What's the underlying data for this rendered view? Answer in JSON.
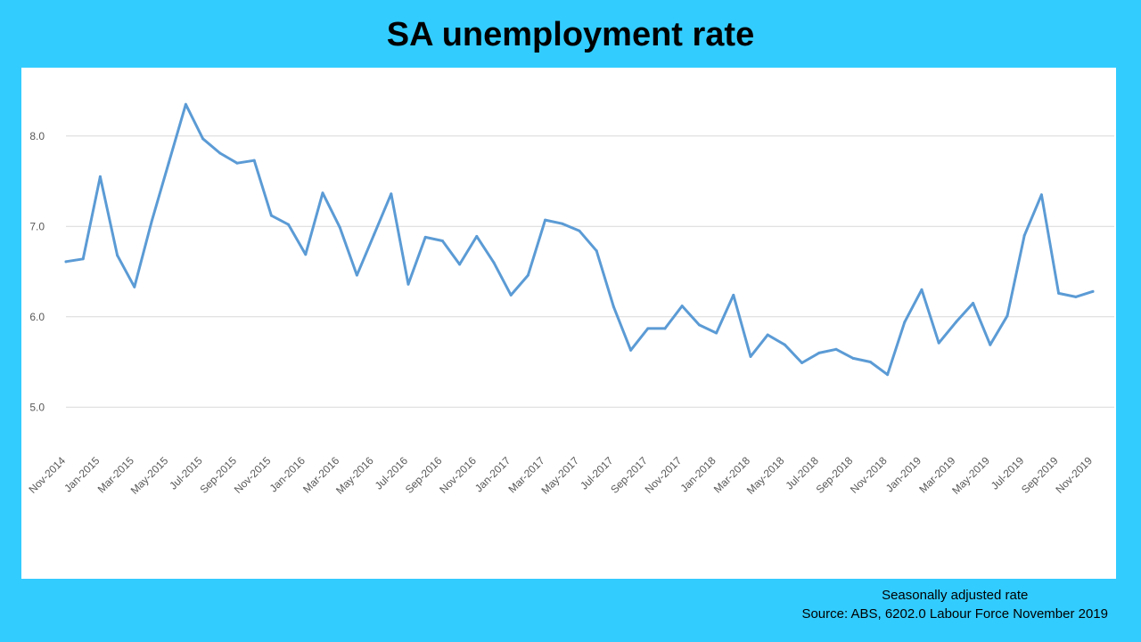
{
  "title": "SA unemployment rate",
  "footer": {
    "line1": "Seasonally adjusted rate",
    "line2": "Source: ABS, 6202.0 Labour Force November 2019"
  },
  "colors": {
    "background": "#33ccff",
    "panel": "#ffffff",
    "line": "#5b9bd5",
    "grid": "#d9d9d9",
    "tick_text": "#595959"
  },
  "chart_data": {
    "type": "line",
    "title": "SA unemployment rate",
    "xlabel": "",
    "ylabel": "",
    "ylim": [
      4.5,
      8.5
    ],
    "yticks": [
      "5.0",
      "6.0",
      "7.0",
      "8.0"
    ],
    "grid": true,
    "legend": "none",
    "x": [
      "Nov-2014",
      "Dec-2014",
      "Jan-2015",
      "Feb-2015",
      "Mar-2015",
      "Apr-2015",
      "May-2015",
      "Jun-2015",
      "Jul-2015",
      "Aug-2015",
      "Sep-2015",
      "Oct-2015",
      "Nov-2015",
      "Dec-2015",
      "Jan-2016",
      "Feb-2016",
      "Mar-2016",
      "Apr-2016",
      "May-2016",
      "Jun-2016",
      "Jul-2016",
      "Aug-2016",
      "Sep-2016",
      "Oct-2016",
      "Nov-2016",
      "Dec-2016",
      "Jan-2017",
      "Feb-2017",
      "Mar-2017",
      "Apr-2017",
      "May-2017",
      "Jun-2017",
      "Jul-2017",
      "Aug-2017",
      "Sep-2017",
      "Oct-2017",
      "Nov-2017",
      "Dec-2017",
      "Jan-2018",
      "Feb-2018",
      "Mar-2018",
      "Apr-2018",
      "May-2018",
      "Jun-2018",
      "Jul-2018",
      "Aug-2018",
      "Sep-2018",
      "Oct-2018",
      "Nov-2018",
      "Dec-2018",
      "Jan-2019",
      "Feb-2019",
      "Mar-2019",
      "Apr-2019",
      "May-2019",
      "Jun-2019",
      "Jul-2019",
      "Aug-2019",
      "Sep-2019",
      "Oct-2019",
      "Nov-2019"
    ],
    "xtick_labels": [
      "Nov-2014",
      "Jan-2015",
      "Mar-2015",
      "May-2015",
      "Jul-2015",
      "Sep-2015",
      "Nov-2015",
      "Jan-2016",
      "Mar-2016",
      "May-2016",
      "Jul-2016",
      "Sep-2016",
      "Nov-2016",
      "Jan-2017",
      "Mar-2017",
      "May-2017",
      "Jul-2017",
      "Sep-2017",
      "Nov-2017",
      "Jan-2018",
      "Mar-2018",
      "May-2018",
      "Jul-2018",
      "Sep-2018",
      "Nov-2018",
      "Jan-2019",
      "Mar-2019",
      "May-2019",
      "Jul-2019",
      "Sep-2019",
      "Nov-2019"
    ],
    "series": [
      {
        "values": [
          6.61,
          6.64,
          7.55,
          6.68,
          6.33,
          7.05,
          7.7,
          8.35,
          7.97,
          7.81,
          7.7,
          7.73,
          7.12,
          7.02,
          6.69,
          7.37,
          6.99,
          6.46,
          6.91,
          7.36,
          6.36,
          6.88,
          6.84,
          6.58,
          6.89,
          6.6,
          6.24,
          6.46,
          7.07,
          7.03,
          6.95,
          6.73,
          6.11,
          5.63,
          5.87,
          5.87,
          6.12,
          5.91,
          5.82,
          6.24,
          5.56,
          5.8,
          5.69,
          5.49,
          5.6,
          5.64,
          5.54,
          5.5,
          5.36,
          5.94,
          6.3,
          5.71,
          5.94,
          6.15,
          5.69,
          6.01,
          6.9,
          7.35,
          6.26,
          6.22,
          6.28
        ]
      }
    ]
  }
}
